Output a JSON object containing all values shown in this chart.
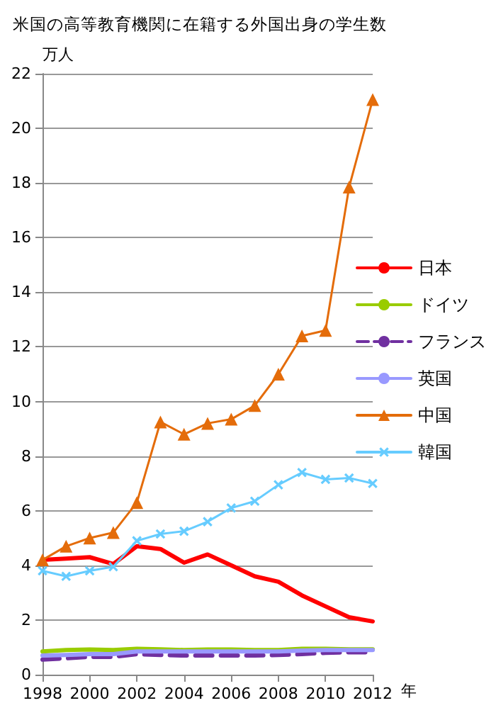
{
  "chart_data": {
    "type": "line",
    "title": "米国の高等教育機関に在籍する外国出身の学生数",
    "xlabel": "年",
    "ylabel": "万人",
    "x": [
      1998,
      1999,
      2000,
      2001,
      2002,
      2003,
      2004,
      2005,
      2006,
      2007,
      2008,
      2009,
      2010,
      2011,
      2012
    ],
    "xlim": [
      1998,
      2012
    ],
    "xticks": [
      1998,
      2000,
      2002,
      2004,
      2006,
      2008,
      2010,
      2012
    ],
    "ylim": [
      0,
      22
    ],
    "yticks": [
      0,
      2,
      4,
      6,
      8,
      10,
      12,
      14,
      16,
      18,
      20,
      22
    ],
    "grid": "y",
    "legend": "right",
    "marker": "none",
    "line_style": "solid",
    "series": [
      {
        "name": "日本",
        "color": "#ff0000",
        "values": [
          4.2,
          4.25,
          4.3,
          4.05,
          4.7,
          4.6,
          4.1,
          4.4,
          4.0,
          3.6,
          3.4,
          2.9,
          2.5,
          2.1,
          1.95
        ]
      },
      {
        "name": "ドイツ",
        "color": "#99cc00",
        "values": [
          0.85,
          0.9,
          0.92,
          0.9,
          0.95,
          0.93,
          0.9,
          0.92,
          0.92,
          0.9,
          0.9,
          0.95,
          0.95,
          0.93,
          0.93
        ]
      },
      {
        "name": "フランス",
        "color": "#7030a0",
        "line_style": "dashed",
        "values": [
          0.55,
          0.6,
          0.65,
          0.65,
          0.75,
          0.72,
          0.7,
          0.7,
          0.7,
          0.7,
          0.72,
          0.75,
          0.8,
          0.82,
          0.82
        ]
      },
      {
        "name": "英国",
        "color": "#9999ff",
        "values": [
          0.7,
          0.72,
          0.75,
          0.75,
          0.85,
          0.85,
          0.85,
          0.85,
          0.85,
          0.85,
          0.85,
          0.88,
          0.9,
          0.9,
          0.9
        ]
      },
      {
        "name": "中国",
        "color": "#e46c0a",
        "marker": "triangle",
        "values": [
          4.2,
          4.7,
          5.0,
          5.2,
          6.3,
          9.25,
          8.8,
          9.2,
          9.35,
          9.85,
          11.0,
          12.4,
          12.6,
          17.85,
          21.05
        ]
      },
      {
        "name": "韓国",
        "color": "#66ccff",
        "marker": "cross",
        "values": [
          3.8,
          3.6,
          3.8,
          3.95,
          4.9,
          5.15,
          5.25,
          5.6,
          6.1,
          6.35,
          6.95,
          7.4,
          7.15,
          7.2,
          7.0
        ]
      }
    ]
  }
}
